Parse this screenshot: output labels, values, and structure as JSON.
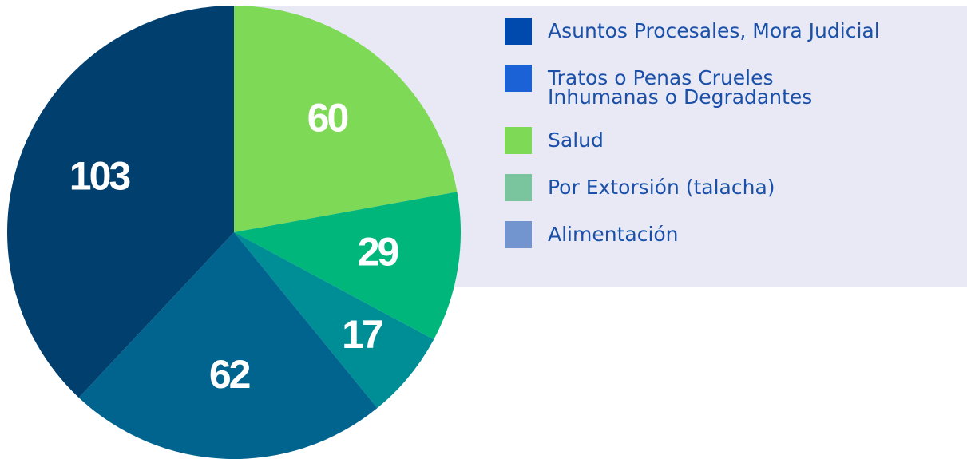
{
  "chart_data": {
    "type": "pie",
    "categories": [
      "Asuntos Procesales, Mora Judicial",
      "Tratos o Penas Crueles\nInhumanas o Degradantes",
      "Salud",
      "Por Extorsión (talacha)",
      "Alimentación"
    ],
    "legend_colors": [
      "#004aad",
      "#1a62d6",
      "#7ed957",
      "#7ac49e",
      "#7294cf"
    ],
    "slices": [
      {
        "value": 60,
        "color": "#7ed957"
      },
      {
        "value": 29,
        "color": "#00b67a"
      },
      {
        "value": 17,
        "color": "#008e96"
      },
      {
        "value": 62,
        "color": "#00648f"
      },
      {
        "value": 103,
        "color": "#003f6e"
      }
    ]
  }
}
